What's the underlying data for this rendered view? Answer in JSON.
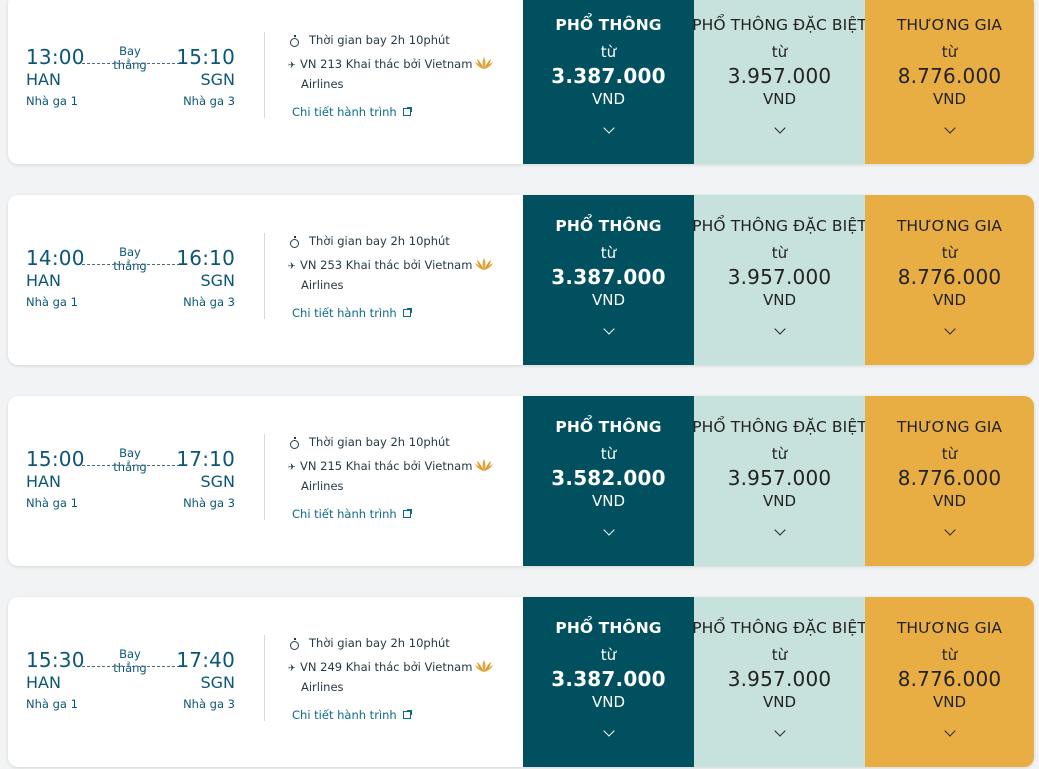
{
  "colors": {
    "economy": "#005060",
    "deluxe": "#c7e1dc",
    "business": "#e8ae44",
    "primary_text": "#0b5677"
  },
  "common": {
    "stop_type": "Bay thẳng",
    "departure_code": "HAN",
    "departure_terminal": "Nhà ga 1",
    "arrival_code": "SGN",
    "arrival_terminal": "Nhà ga 3",
    "duration": "Thời gian bay 2h 10phút",
    "operated_by_line1": "Khai thác bởi Vietnam",
    "operated_by_line2": "Airlines",
    "detail_link": "Chi tiết hành trình",
    "from_label": "từ",
    "currency": "VND",
    "fare_economy_name": "PHỔ THÔNG",
    "fare_deluxe_name": "PHỔ THÔNG ĐẶC BIỆT",
    "fare_business_name": "THƯƠNG GIA"
  },
  "flights": [
    {
      "departure_time": "13:00",
      "arrival_time": "15:10",
      "flight_number": "VN 213",
      "price_economy": "3.387.000",
      "price_deluxe": "3.957.000",
      "price_business": "8.776.000"
    },
    {
      "departure_time": "14:00",
      "arrival_time": "16:10",
      "flight_number": "VN 253",
      "price_economy": "3.387.000",
      "price_deluxe": "3.957.000",
      "price_business": "8.776.000"
    },
    {
      "departure_time": "15:00",
      "arrival_time": "17:10",
      "flight_number": "VN 215",
      "price_economy": "3.582.000",
      "price_deluxe": "3.957.000",
      "price_business": "8.776.000"
    },
    {
      "departure_time": "15:30",
      "arrival_time": "17:40",
      "flight_number": "VN 249",
      "price_economy": "3.387.000",
      "price_deluxe": "3.957.000",
      "price_business": "8.776.000"
    }
  ]
}
